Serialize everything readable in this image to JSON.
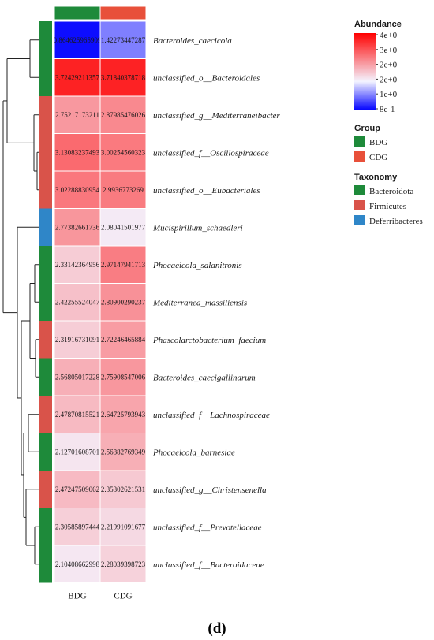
{
  "chart_data": {
    "type": "heatmap",
    "columns": [
      "BDG",
      "CDG"
    ],
    "rows": [
      "Bacteroides_caecicola",
      "unclassified_o__Bacteroidales",
      "unclassified_g__Mediterraneibacter",
      "unclassified_f__Oscillospiraceae",
      "unclassified_o__Eubacteriales",
      "Mucispirillum_schaedleri",
      "Phocaeicola_salanitronis",
      "Mediterranea_massiliensis",
      "Phascolarctobacterium_faecium",
      "Bacteroides_caecigallinarum",
      "unclassified_f__Lachnospiraceae",
      "Phocaeicola_barnesiae",
      "unclassified_g__Christensenella",
      "unclassified_f__Prevotellaceae",
      "unclassified_f__Bacteroidaceae"
    ],
    "values": [
      [
        "0.864625965909",
        "1.42273447287"
      ],
      [
        "3.72429211357",
        "3.71840378718"
      ],
      [
        "2.75217173211",
        "2.87985476026"
      ],
      [
        "3.13083237493",
        "3.00254560323"
      ],
      [
        "3.02288830954",
        "2.9936773269"
      ],
      [
        "2.77382661736",
        "2.08041501977"
      ],
      [
        "2.33142364956",
        "2.97147941713"
      ],
      [
        "2.42255524047",
        "2.80900290237"
      ],
      [
        "2.31916731091",
        "2.72246465884"
      ],
      [
        "2.56805017228",
        "2.75908547006"
      ],
      [
        "2.47870815521",
        "2.64725793943"
      ],
      [
        "2.12701608701",
        "2.56882769349"
      ],
      [
        "2.47247509062",
        "2.35302621531"
      ],
      [
        "2.30585897444",
        "2.21991091677"
      ],
      [
        "2.10408662998",
        "2.28039398723"
      ]
    ],
    "row_taxonomy": [
      "Bacteroidota",
      "Bacteroidota",
      "Firmicutes",
      "Firmicutes",
      "Firmicutes",
      "Deferribacteres",
      "Bacteroidota",
      "Bacteroidota",
      "Firmicutes",
      "Bacteroidota",
      "Firmicutes",
      "Bacteroidota",
      "Firmicutes",
      "Bacteroidota",
      "Bacteroidota"
    ],
    "column_group": [
      "BDG",
      "CDG"
    ],
    "color_scale": {
      "title": "Abundance",
      "min": 0.8,
      "mid": 2.0,
      "max": 4.0,
      "tick_labels": [
        "4e+0",
        "3e+0",
        "2e+0",
        "2e+0",
        "1e+0",
        "8e-1"
      ],
      "low_color": "#0000ff",
      "mid_color": "#f4f4ff",
      "high_color": "#ff0000"
    },
    "legends": [
      {
        "title": "Group",
        "items": [
          {
            "label": "BDG",
            "color": "#1e8a3a"
          },
          {
            "label": "CDG",
            "color": "#e8503a"
          }
        ]
      },
      {
        "title": "Taxonomy",
        "items": [
          {
            "label": "Bacteroidota",
            "color": "#1e8a3a"
          },
          {
            "label": "Firmicutes",
            "color": "#d9534a"
          },
          {
            "label": "Deferribacteres",
            "color": "#2f86c8"
          }
        ]
      }
    ],
    "panel_label": "(d)"
  }
}
